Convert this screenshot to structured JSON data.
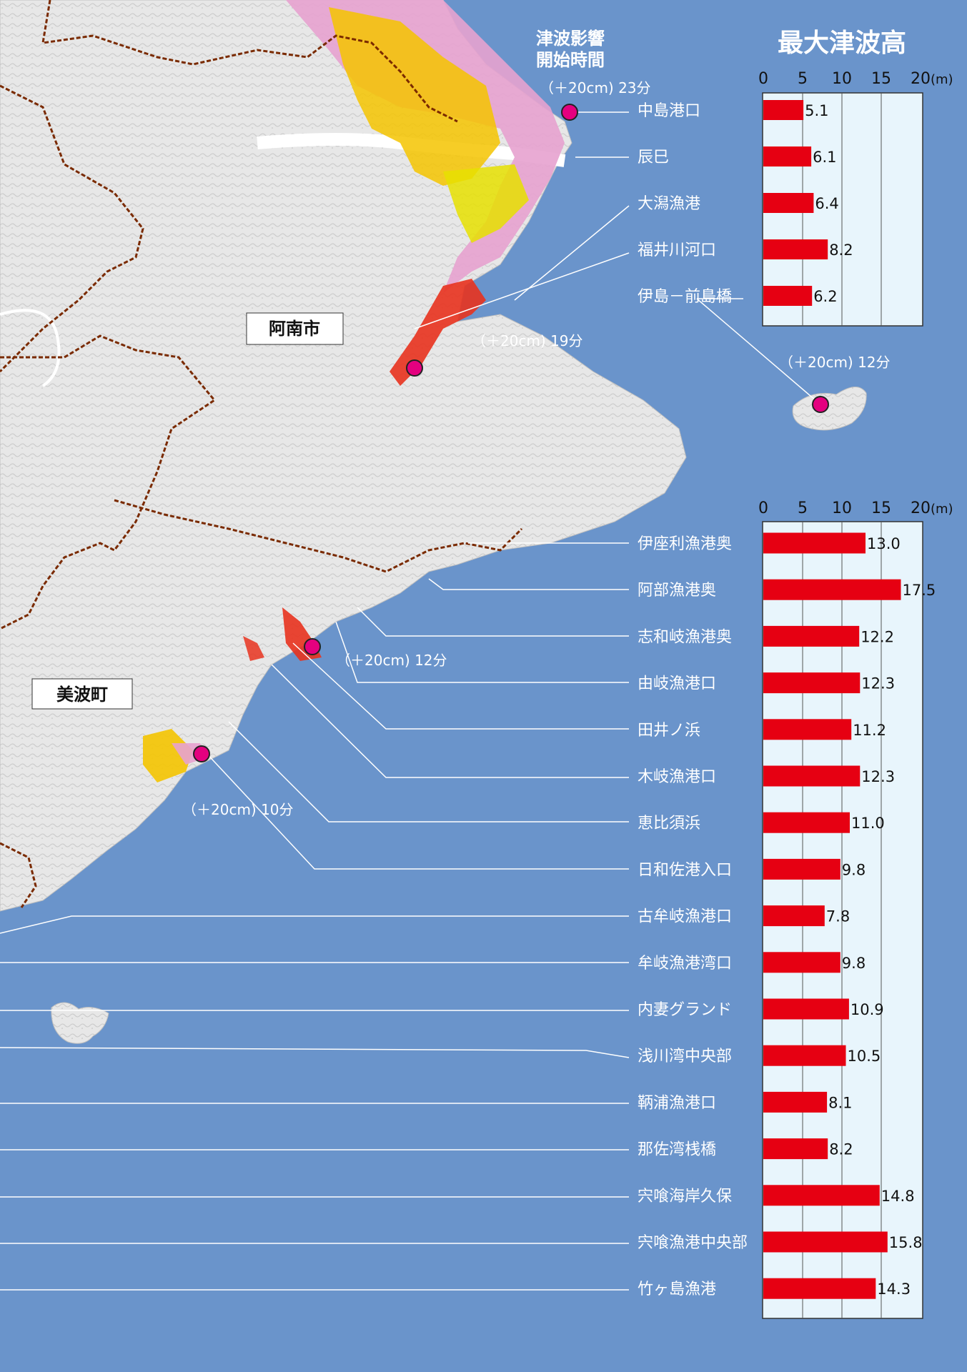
{
  "title": "最大津波高",
  "arrival_heading": [
    "津波影響",
    "開始時間"
  ],
  "unit": "(m)",
  "areas": [
    "阿南市",
    "美波町"
  ],
  "arrival_markers": [
    {
      "label": "（＋20cm) 23分",
      "minutes": 23
    },
    {
      "label": "（＋20cm) 19分",
      "minutes": 19
    },
    {
      "label": "（＋20cm) 12分",
      "minutes": 12
    },
    {
      "label": "（＋20cm) 12分",
      "minutes": 12
    },
    {
      "label": "（＋20cm) 10分",
      "minutes": 10
    }
  ],
  "colors": {
    "sea": "#6a94cb",
    "bar": "#e60012",
    "marker": "#e4007f",
    "panel": "#e8f5fc"
  },
  "chart_data": [
    {
      "type": "bar",
      "title": "最大津波高",
      "ylabel": "(m)",
      "xlim": [
        0,
        20
      ],
      "ticks": [
        0,
        5,
        10,
        15,
        20
      ],
      "grid": true,
      "categories": [
        "中島港口",
        "辰巳",
        "大潟漁港",
        "福井川河口",
        "伊島－前島橋"
      ],
      "values": [
        5.1,
        6.1,
        6.4,
        8.2,
        6.2
      ]
    },
    {
      "type": "bar",
      "ylabel": "(m)",
      "xlim": [
        0,
        20
      ],
      "ticks": [
        0,
        5,
        10,
        15,
        20
      ],
      "grid": true,
      "categories": [
        "伊座利漁港奥",
        "阿部漁港奥",
        "志和岐漁港奥",
        "由岐漁港口",
        "田井ノ浜",
        "木岐漁港口",
        "恵比須浜",
        "日和佐港入口",
        "古牟岐漁港口",
        "牟岐漁港湾口",
        "内妻グランド",
        "浅川湾中央部",
        "鞆浦漁港口",
        "那佐湾桟橋",
        "宍喰海岸久保",
        "宍喰漁港中央部",
        "竹ヶ島漁港"
      ],
      "values": [
        13.0,
        17.5,
        12.2,
        12.3,
        11.2,
        12.3,
        11.0,
        9.8,
        7.8,
        9.8,
        10.9,
        10.5,
        8.1,
        8.2,
        14.8,
        15.8,
        14.3
      ]
    }
  ]
}
